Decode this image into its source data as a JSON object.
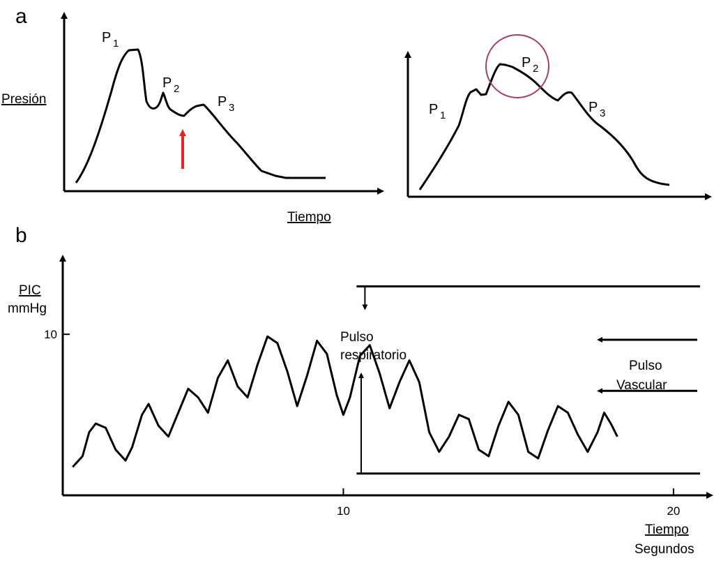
{
  "labels": {
    "panel_a": "a",
    "panel_b": "b"
  },
  "chart_data": [
    {
      "type": "line",
      "panel": "a",
      "title": "",
      "xlabel": "Tiempo",
      "ylabel": "Presión",
      "peaks": [
        {
          "label": "P",
          "sub": "1"
        },
        {
          "label": "P",
          "sub": "2"
        },
        {
          "label": "P",
          "sub": "3"
        }
      ],
      "annotation": "red arrow at notch between P2 and P3",
      "arrow_color": "#e8232a"
    },
    {
      "type": "line",
      "panel": "a",
      "title": "",
      "xlabel": "",
      "ylabel": "",
      "peaks": [
        {
          "label": "P",
          "sub": "1"
        },
        {
          "label": "P",
          "sub": "2"
        },
        {
          "label": "P",
          "sub": "3"
        }
      ],
      "annotation": "circle around P2",
      "circle_color": "#a2415a"
    },
    {
      "type": "line",
      "panel": "b",
      "title": "",
      "xlabel": "Tiempo",
      "xunit": "Segundos",
      "ylabel": "PIC",
      "yunit": "mmHg",
      "x_ticks": [
        10,
        20
      ],
      "y_ticks": [
        10
      ],
      "xlim": [
        1.5,
        21.1
      ],
      "ylim": [
        2.6,
        13.5
      ],
      "annotations": {
        "respiratory": "Pulso respiratorio",
        "vascular": "Pulso Vascular"
      },
      "resp_lines": {
        "upper": 12.2,
        "lower": 3.6,
        "x_start": 10.4
      },
      "vasc_lines": {
        "upper": 9.75,
        "lower": 7.4,
        "x_start": 18.2
      },
      "x": [
        1.8,
        2.1,
        2.3,
        2.5,
        2.8,
        3.1,
        3.4,
        3.6,
        3.9,
        4.1,
        4.4,
        4.7,
        5.0,
        5.3,
        5.6,
        5.9,
        6.2,
        6.5,
        6.8,
        7.1,
        7.4,
        7.7,
        8.0,
        8.3,
        8.6,
        8.9,
        9.2,
        9.5,
        9.8,
        10.0,
        10.2,
        10.5,
        10.8,
        11.1,
        11.4,
        11.7,
        12.0,
        12.3,
        12.6,
        12.9,
        13.2,
        13.5,
        13.8,
        14.1,
        14.4,
        14.7,
        15.0,
        15.3,
        15.6,
        15.9,
        16.2,
        16.5,
        16.8,
        17.1,
        17.4,
        17.7,
        17.9,
        18.1,
        18.3
      ],
      "y": [
        3.9,
        4.4,
        5.5,
        5.9,
        5.7,
        4.7,
        4.2,
        4.8,
        6.3,
        6.8,
        5.8,
        5.3,
        6.4,
        7.5,
        7.1,
        6.4,
        8.0,
        8.8,
        7.6,
        7.1,
        8.6,
        9.9,
        9.6,
        8.3,
        6.7,
        8.1,
        9.7,
        9.1,
        7.2,
        6.3,
        7.1,
        9.0,
        9.5,
        8.2,
        6.6,
        7.8,
        8.8,
        7.8,
        5.5,
        4.6,
        5.3,
        6.3,
        6.1,
        4.7,
        4.4,
        5.8,
        6.9,
        6.3,
        4.6,
        4.3,
        5.6,
        6.7,
        6.4,
        5.4,
        4.6,
        5.5,
        6.4,
        5.9,
        5.3
      ]
    }
  ]
}
